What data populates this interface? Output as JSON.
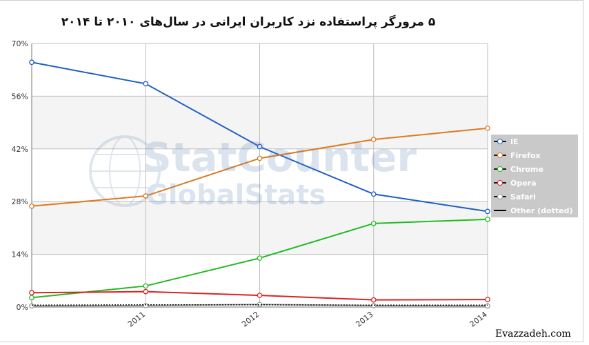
{
  "chart_data": {
    "type": "line",
    "title": "۵ مرورگر پراستفاده نزد کاربران ایرانی در سال‌های ۲۰۱۰ تا ۲۰۱۴",
    "x": [
      "2010",
      "2011",
      "2012",
      "2013",
      "2014"
    ],
    "x_tick_labels": [
      "2011",
      "2012",
      "2013",
      "2014"
    ],
    "y_tick_labels": [
      "0%",
      "14%",
      "28%",
      "42%",
      "56%",
      "70%"
    ],
    "ylim": [
      0,
      70
    ],
    "grid": true,
    "legend_position": "right",
    "series": [
      {
        "name": "IE",
        "color": "#1f5fc4",
        "values": [
          65,
          59.3,
          42.6,
          30,
          25.4
        ]
      },
      {
        "name": "Firefox",
        "color": "#dd7a22",
        "values": [
          26.8,
          29.5,
          39.5,
          44.5,
          47.5
        ]
      },
      {
        "name": "Chrome",
        "color": "#22bb22",
        "values": [
          2.5,
          5.6,
          13,
          22.2,
          23.3
        ]
      },
      {
        "name": "Opera",
        "color": "#dd2222",
        "values": [
          3.8,
          4.1,
          3.1,
          1.9,
          2
        ]
      },
      {
        "name": "Safari",
        "color": "#999999",
        "values": [
          0.3,
          0.4,
          0.7,
          0.4,
          0.3
        ]
      },
      {
        "name": "Other (dotted)",
        "color": "#111111",
        "dotted": true,
        "values": [
          0.5,
          0.6,
          0.6,
          0.5,
          0.5
        ]
      }
    ],
    "watermark": {
      "line1": "StatCounter",
      "line2": "GlobalStats"
    }
  },
  "credit": "Evazzadeh.com"
}
